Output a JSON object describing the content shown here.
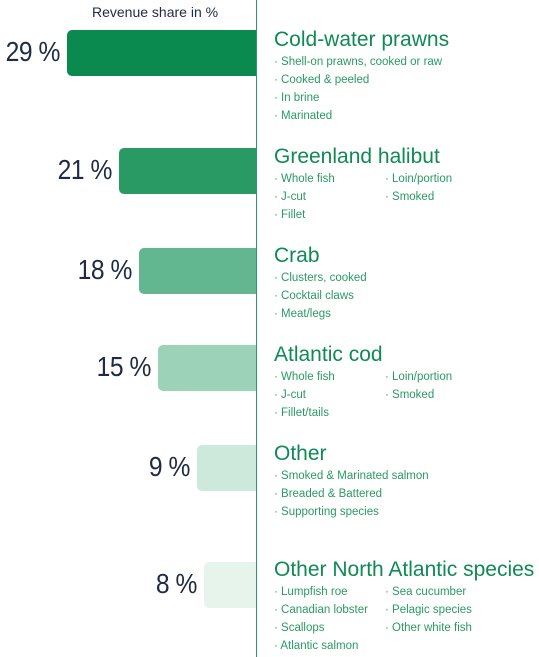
{
  "chart_data": {
    "type": "bar",
    "orientation": "horizontal",
    "title": "Revenue share in %",
    "unit": "%",
    "categories": [
      "Cold-water prawns",
      "Greenland halibut",
      "Crab",
      "Atlantic cod",
      "Other",
      "Other North Atlantic species"
    ],
    "values": [
      29,
      21,
      18,
      15,
      9,
      8
    ],
    "value_labels": [
      "29 %",
      "21 %",
      "18 %",
      "15 %",
      "9 %",
      "8 %"
    ],
    "colors": [
      "#0b8a50",
      "#2a9a64",
      "#62b791",
      "#9cd2b8",
      "#cde9dc",
      "#e6f4ec"
    ],
    "xlim": [
      0,
      30
    ],
    "grid": false,
    "legend": "none"
  },
  "details": [
    {
      "columns": 1,
      "items": [
        "Shell-on prawns, cooked or raw",
        "Cooked & peeled",
        "In brine",
        "Marinated"
      ]
    },
    {
      "columns": 2,
      "items": [
        "Whole fish",
        "Loin/portion",
        "J-cut",
        "Smoked",
        "Fillet"
      ]
    },
    {
      "columns": 1,
      "items": [
        "Clusters, cooked",
        "Cocktail claws",
        "Meat/legs"
      ]
    },
    {
      "columns": 2,
      "items": [
        "Whole fish",
        "Loin/portion",
        "J-cut",
        "Smoked",
        "Fillet/tails"
      ]
    },
    {
      "columns": 1,
      "items": [
        "Smoked & Marinated salmon",
        "Breaded & Battered",
        "Supporting species"
      ]
    },
    {
      "columns": 2,
      "items": [
        "Lumpfish roe",
        "Sea cucumber",
        "Canadian lobster",
        "Pelagic species",
        "Scallops",
        "Other white fish",
        "Atlantic salmon"
      ]
    }
  ]
}
